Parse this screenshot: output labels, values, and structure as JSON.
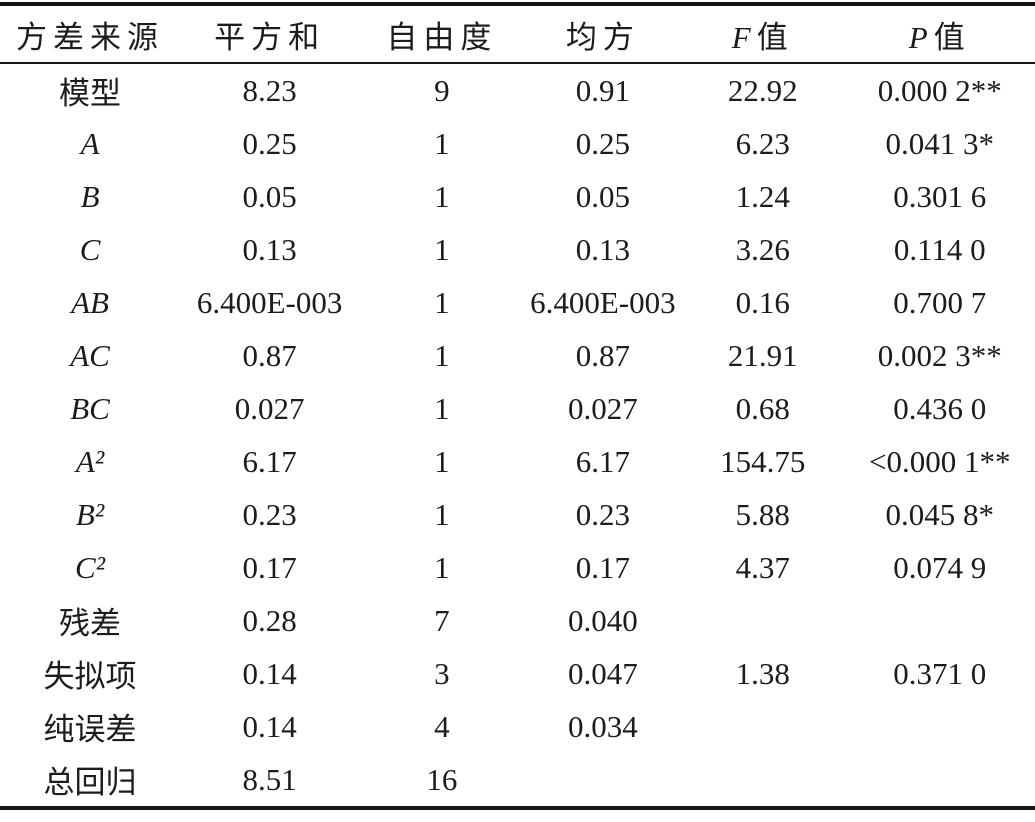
{
  "table": {
    "columns": [
      {
        "label": "方差来源"
      },
      {
        "label": "平方和"
      },
      {
        "label": "自由度"
      },
      {
        "label": "均方"
      },
      {
        "italic_part": "F",
        "label": "值"
      },
      {
        "italic_part": "P",
        "label": "值"
      }
    ],
    "rows": [
      {
        "source_italic": false,
        "cells": [
          "模型",
          "8.23",
          "9",
          "0.91",
          "22.92",
          "0.000 2**"
        ]
      },
      {
        "source_italic": true,
        "cells": [
          "A",
          "0.25",
          "1",
          "0.25",
          "6.23",
          "0.041 3*"
        ]
      },
      {
        "source_italic": true,
        "cells": [
          "B",
          "0.05",
          "1",
          "0.05",
          "1.24",
          "0.301 6"
        ]
      },
      {
        "source_italic": true,
        "cells": [
          "C",
          "0.13",
          "1",
          "0.13",
          "3.26",
          "0.114 0"
        ]
      },
      {
        "source_italic": true,
        "cells": [
          "AB",
          "6.400E-003",
          "1",
          "6.400E-003",
          "0.16",
          "0.700 7"
        ]
      },
      {
        "source_italic": true,
        "cells": [
          "AC",
          "0.87",
          "1",
          "0.87",
          "21.91",
          "0.002 3**"
        ]
      },
      {
        "source_italic": true,
        "cells": [
          "BC",
          "0.027",
          "1",
          "0.027",
          "0.68",
          "0.436 0"
        ]
      },
      {
        "source_italic": true,
        "cells": [
          "A²",
          "6.17",
          "1",
          "6.17",
          "154.75",
          "<0.000 1**"
        ]
      },
      {
        "source_italic": true,
        "cells": [
          "B²",
          "0.23",
          "1",
          "0.23",
          "5.88",
          "0.045 8*"
        ]
      },
      {
        "source_italic": true,
        "cells": [
          "C²",
          "0.17",
          "1",
          "0.17",
          "4.37",
          "0.074 9"
        ]
      },
      {
        "source_italic": false,
        "cells": [
          "残差",
          "0.28",
          "7",
          "0.040",
          "",
          ""
        ]
      },
      {
        "source_italic": false,
        "cells": [
          "失拟项",
          "0.14",
          "3",
          "0.047",
          "1.38",
          "0.371 0"
        ]
      },
      {
        "source_italic": false,
        "cells": [
          "纯误差",
          "0.14",
          "4",
          "0.034",
          "",
          ""
        ]
      },
      {
        "source_italic": false,
        "cells": [
          "总回归",
          "8.51",
          "16",
          "",
          "",
          ""
        ]
      }
    ]
  }
}
